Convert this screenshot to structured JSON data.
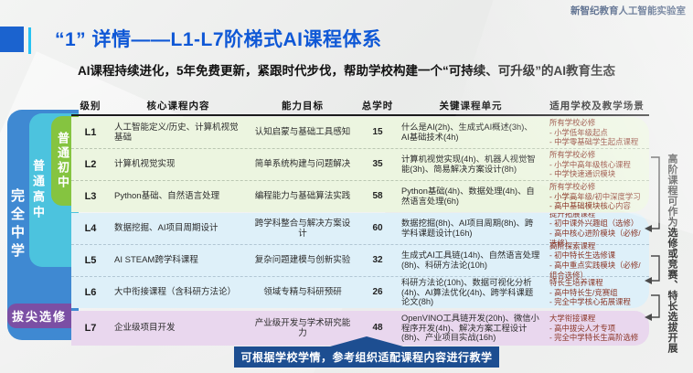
{
  "page": {
    "org": "新智纪教育人工智能实验室",
    "title": "“1” 详情——L1-L7阶梯式AI课程体系",
    "subtitle": "AI课程持续进化，5年免费更新，紧跟时代步伐，帮助学校构建一个“可持续、可升级”的AI教育生态",
    "side_note": "高阶课程可作为选修或竞赛、特长选拔开展",
    "bottom_note": "可根据学校学情，参考组织适配课程内容进行教学"
  },
  "bands": {
    "full_school": "完全中学",
    "senior": "普通高中",
    "junior": "普通初中",
    "elite": "拔尖选修"
  },
  "table": {
    "headers": [
      "级别",
      "核心课程内容",
      "能力目标",
      "总学时",
      "关键课程单元",
      "适用学校及教学场景"
    ],
    "rows": [
      {
        "level": "L1",
        "group": "green",
        "content": "人工智能定义/历史、计算机视觉基础",
        "goal": "认知启蒙与基础工具感知",
        "hours": "15",
        "units": "什么是AI(2h)、生成式AI概述(3h)、AI基础技术(4h)",
        "scenario": [
          "所有学校必修",
          "- 小学低年级起点",
          "- 中学零基础学生起点课程"
        ]
      },
      {
        "level": "L2",
        "group": "green",
        "content": "计算机视觉实现",
        "goal": "简单系统构建与问题解决",
        "hours": "35",
        "units": "计算机视觉实现(4h)、机器人视觉智能(3h)、简易解决方案设计(8h)",
        "scenario": [
          "所有学校必修",
          "- 小学中高年级核心课程",
          "- 中学快速通识模块"
        ]
      },
      {
        "level": "L3",
        "group": "green",
        "content": "Python基础、自然语言处理",
        "goal": "编程能力与基础算法实践",
        "hours": "58",
        "units": "Python基础(4h)、数据处理(4h)、自然语言处理(6h)",
        "scenario": [
          "所有学校必修",
          "- 小学高年级/初中深度学习",
          "- 高中基础模块核心内容"
        ]
      },
      {
        "level": "L4",
        "group": "blue",
        "content": "数据挖掘、AI项目周期设计",
        "goal": "跨学科整合与解决方案设计",
        "hours": "60",
        "units": "数据挖掘(8h)、AI项目周期(8h)、跨学科课题设计(16h)",
        "scenario": [
          "提升拓展课程",
          "- 初中课外兴趣组（选修）",
          "- 高中核心进阶模块（必修/选修）"
        ]
      },
      {
        "level": "L5",
        "group": "blue",
        "content": "AI STEAM跨学科课程",
        "goal": "复杂问题建模与创新实验",
        "hours": "32",
        "units": "生成式AI工具链(14h)、自然语言处理(8h)、科研方法论(10h)",
        "scenario": [
          "高阶探索课程",
          "- 初中特长生选修课",
          "- 高中重点实践模块（必修/组合选修）"
        ]
      },
      {
        "level": "L6",
        "group": "blue",
        "content": "大中衔接课程（含科研方法论）",
        "goal": "领域专精与科研预研",
        "hours": "26",
        "units": "科研方法论(10h)、数据可视化分析(4h)、AI算法优化(4h)、跨学科课题论文(8h)",
        "scenario": [
          "特长生培养课程",
          "- 高中特长生/竞赛组",
          "- 完全中学核心拓展课程"
        ]
      },
      {
        "level": "L7",
        "group": "purple",
        "content": "企业级项目开发",
        "goal": "产业级开发与学术研究能力",
        "hours": "48",
        "units": "OpenVINO工具链开发(20h)、微信小程序开发(4h)、解决方案工程设计(8h)、产业项目实战(16h)",
        "scenario": [
          "大学衔接课程",
          "- 高中拔尖人才专项",
          "- 完全中学特长生高阶选修"
        ]
      }
    ]
  },
  "colors": {
    "title_blue": "#0f58d6",
    "accent_cyan": "#27c2f2",
    "navy_banner": "#1d4e91",
    "band_blue": "#3f89d2",
    "band_cyan": "#4cc3de",
    "band_green": "#85c440",
    "band_purple": "#7b4fa4",
    "row_green": "#ecf5e0",
    "row_blue": "#def0f9",
    "row_purple": "#e9d7ee",
    "scenario_text": "#8a3526"
  }
}
